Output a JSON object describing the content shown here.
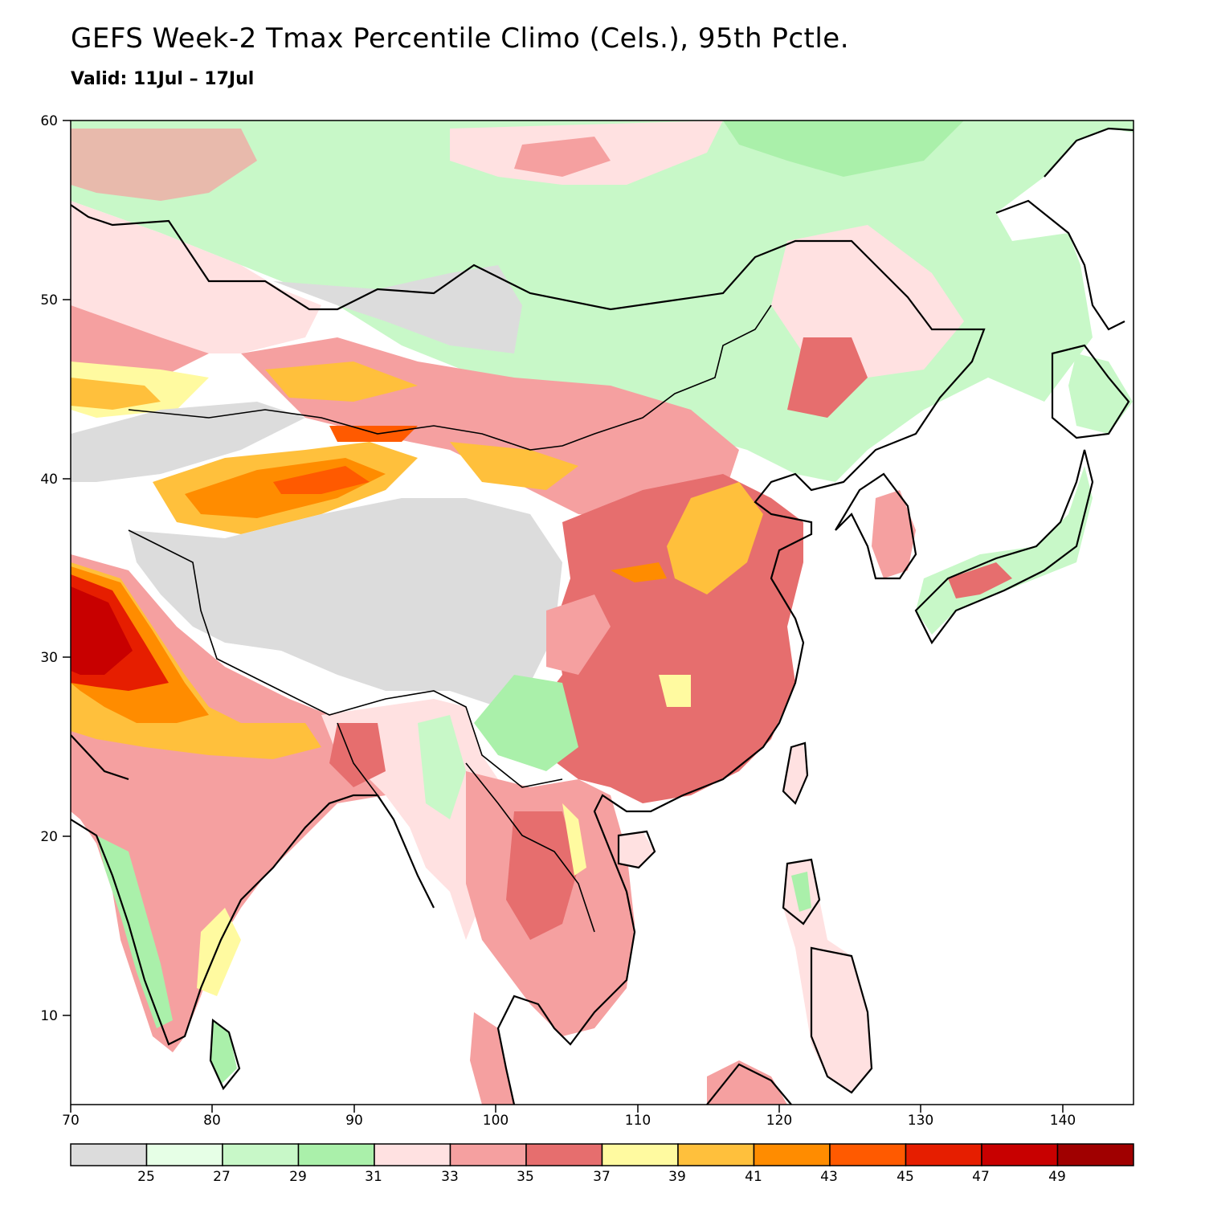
{
  "map": {
    "title": "GEFS Week-2 Tmax Percentile Climo (Cels.), 95th Pctle.",
    "subtitle": "Valid: 11Jul – 17Jul",
    "lon_ticks": [
      "70",
      "80",
      "90",
      "100",
      "110",
      "120",
      "130",
      "140"
    ],
    "lat_ticks": [
      "60",
      "50",
      "40",
      "30",
      "20",
      "10"
    ],
    "lon_range": [
      70,
      145
    ],
    "lat_range": [
      5,
      60
    ]
  },
  "colorbar": {
    "labels": [
      "25",
      "27",
      "29",
      "31",
      "33",
      "35",
      "37",
      "39",
      "41",
      "43",
      "45",
      "47",
      "49"
    ],
    "colors": [
      "#dcdcdc",
      "#e6ffe6",
      "#c8f8c8",
      "#aaf0aa",
      "#ffe1e1",
      "#f5a0a0",
      "#e66e6e",
      "#fffaa0",
      "#ffc03c",
      "#ff8c00",
      "#ff5a00",
      "#e61e00",
      "#c80000",
      "#a00000"
    ]
  }
}
